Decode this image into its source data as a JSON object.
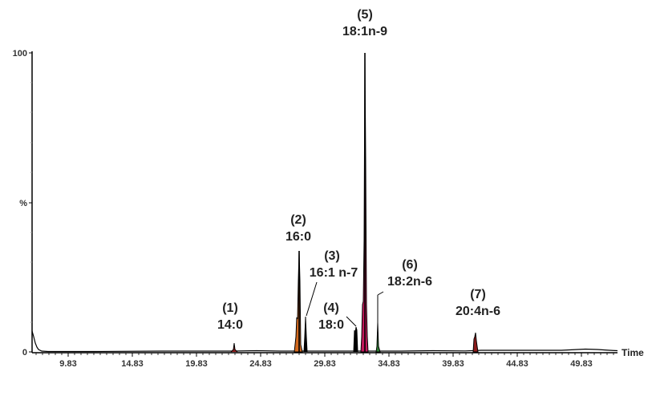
{
  "chart_data": {
    "type": "line",
    "title": "",
    "xlabel": "Time",
    "ylabel": "%",
    "xlim": [
      7.0,
      52.6
    ],
    "ylim": [
      0,
      100
    ],
    "x_ticks": [
      "9.83",
      "14.83",
      "19.83",
      "24.83",
      "29.83",
      "34.83",
      "39.83",
      "44.83",
      "49.83"
    ],
    "y_ticks": [
      "0",
      "%",
      "100"
    ],
    "grid": false,
    "legend": null,
    "peaks": [
      {
        "id": "(1)",
        "name": "14:0",
        "time": 22.8,
        "intensity": 3,
        "fill": null
      },
      {
        "id": "(2)",
        "name": "16:0",
        "time": 27.8,
        "intensity": 34,
        "fill": "#d2691e"
      },
      {
        "id": "(3)",
        "name": "16:1 n-7",
        "time": 28.3,
        "intensity": 12,
        "fill": null
      },
      {
        "id": "(4)",
        "name": "18:0",
        "time": 32.3,
        "intensity": 8,
        "fill": null
      },
      {
        "id": "(5)",
        "name": "18:1n-9",
        "time": 33.0,
        "intensity": 100,
        "fill": "#c2185b"
      },
      {
        "id": "(6)",
        "name": "18:2n-6",
        "time": 34.0,
        "intensity": 10,
        "fill": "#2e7d32"
      },
      {
        "id": "(7)",
        "name": "20:4n-6",
        "time": 41.6,
        "intensity": 6,
        "fill": "#8b1a1a"
      }
    ]
  },
  "labels": {
    "y_top": "100",
    "y_mid": "%",
    "y_zero": "0",
    "x_title": "Time",
    "p1_id": "(1)",
    "p1_name": "14:0",
    "p2_id": "(2)",
    "p2_name": "16:0",
    "p3_id": "(3)",
    "p3_name": "16:1 n-7",
    "p4_id": "(4)",
    "p4_name": "18:0",
    "p5_id": "(5)",
    "p5_name": "18:1n-9",
    "p6_id": "(6)",
    "p6_name": "18:2n-6",
    "p7_id": "(7)",
    "p7_name": "20:4n-6",
    "ticks": [
      "9.83",
      "14.83",
      "19.83",
      "24.83",
      "29.83",
      "34.83",
      "39.83",
      "44.83",
      "49.83"
    ]
  },
  "colors": {
    "trace": "#000000",
    "peak2_fill": "#d2691e",
    "peak5_fill": "#c2185b",
    "peak6_fill": "#2e7d32",
    "peak7_fill": "#8b1a1a"
  }
}
